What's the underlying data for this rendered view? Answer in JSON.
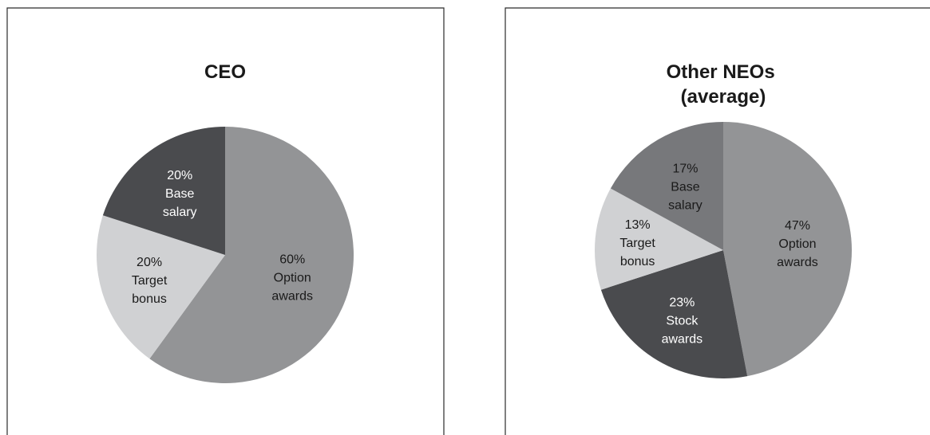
{
  "chart_data": [
    {
      "type": "pie",
      "title_lines": [
        "CEO"
      ],
      "slices": [
        {
          "percent": 60,
          "label_lines": [
            "60%",
            "Option",
            "awards"
          ],
          "color": "#939496",
          "text_color": "#1a1a1a"
        },
        {
          "percent": 20,
          "label_lines": [
            "20%",
            "Target",
            "bonus"
          ],
          "color": "#d0d1d3",
          "text_color": "#1a1a1a"
        },
        {
          "percent": 20,
          "label_lines": [
            "20%",
            "Base",
            "salary"
          ],
          "color": "#4a4b4e",
          "text_color": "#ffffff"
        }
      ]
    },
    {
      "type": "pie",
      "title_lines": [
        "Other NEOs",
        "(average)"
      ],
      "slices": [
        {
          "percent": 47,
          "label_lines": [
            "47%",
            "Option",
            "awards"
          ],
          "color": "#939496",
          "text_color": "#1a1a1a"
        },
        {
          "percent": 23,
          "label_lines": [
            "23%",
            "Stock",
            "awards"
          ],
          "color": "#4a4b4e",
          "text_color": "#ffffff"
        },
        {
          "percent": 13,
          "label_lines": [
            "13%",
            "Target",
            "bonus"
          ],
          "color": "#d0d1d3",
          "text_color": "#1a1a1a"
        },
        {
          "percent": 17,
          "label_lines": [
            "17%",
            "Base",
            "salary"
          ],
          "color": "#77787b",
          "text_color": "#1a1a1a"
        }
      ]
    }
  ]
}
